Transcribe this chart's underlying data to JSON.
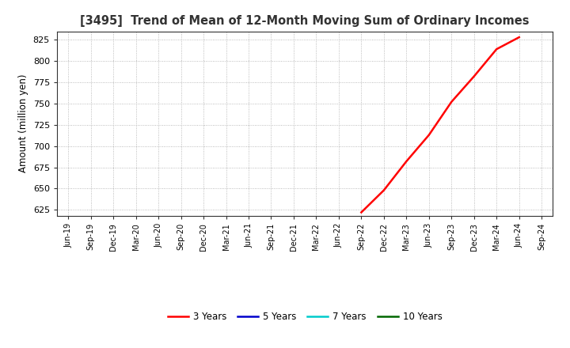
{
  "title": "[3495]  Trend of Mean of 12-Month Moving Sum of Ordinary Incomes",
  "ylabel": "Amount (million yen)",
  "background_color": "#ffffff",
  "grid_color": "#aaaaaa",
  "ylim": [
    618,
    835
  ],
  "yticks": [
    625,
    650,
    675,
    700,
    725,
    750,
    775,
    800,
    825
  ],
  "line_3y_color": "#ff0000",
  "line_5y_color": "#0000cc",
  "line_7y_color": "#00cccc",
  "line_10y_color": "#006600",
  "legend_labels": [
    "3 Years",
    "5 Years",
    "7 Years",
    "10 Years"
  ],
  "x_labels": [
    "Jun-19",
    "Sep-19",
    "Dec-19",
    "Mar-20",
    "Jun-20",
    "Sep-20",
    "Dec-20",
    "Mar-21",
    "Jun-21",
    "Sep-21",
    "Dec-21",
    "Mar-22",
    "Jun-22",
    "Sep-22",
    "Dec-22",
    "Mar-23",
    "Jun-23",
    "Sep-23",
    "Dec-23",
    "Mar-24",
    "Jun-24",
    "Sep-24"
  ],
  "data_3y_x_indices": [
    13,
    14,
    15,
    16,
    17,
    18,
    19,
    20
  ],
  "data_3y_y": [
    622,
    648,
    682,
    713,
    752,
    782,
    814,
    828
  ]
}
